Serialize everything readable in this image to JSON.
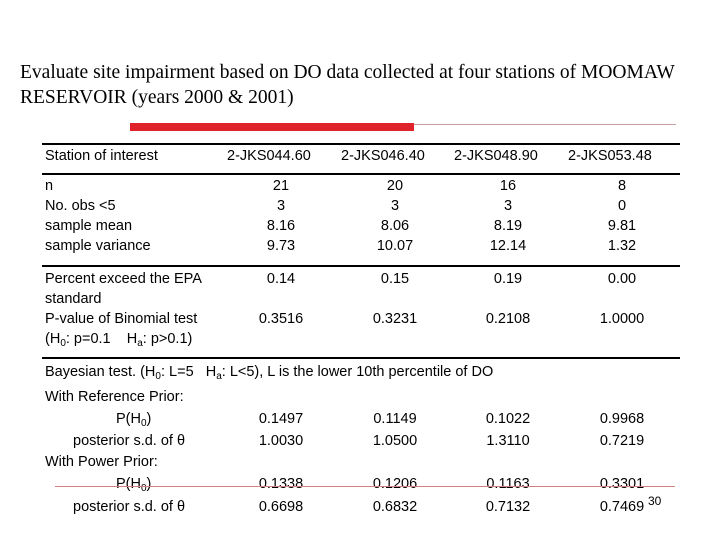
{
  "title": "Evaluate site impairment based on DO data collected at four stations of MOOMAW RESERVOIR (years 2000 & 2001)",
  "colors": {
    "accent_bar": "#e0222a"
  },
  "table": {
    "header_label": "Station of interest",
    "stations": [
      "2-JKS044.60",
      "2-JKS046.40",
      "2-JKS048.90",
      "2-JKS053.48"
    ],
    "block1": [
      {
        "label": "n",
        "values": [
          "21",
          "20",
          "16",
          "8"
        ]
      },
      {
        "label": "No. obs <5",
        "values": [
          "3",
          "3",
          "3",
          "0"
        ]
      },
      {
        "label": "sample mean",
        "values": [
          "8.16",
          "8.06",
          "8.19",
          "9.81"
        ]
      },
      {
        "label": "sample variance",
        "values": [
          "9.73",
          "10.07",
          "12.14",
          "1.32"
        ]
      }
    ],
    "block2": {
      "pct_label_1": "Percent exceed the EPA",
      "pct_label_2": "standard",
      "pct_values": [
        "0.14",
        "0.15",
        "0.19",
        "0.00"
      ],
      "pval_label": "P-value of Binomial test",
      "pval_values": [
        "0.3516",
        "0.3231",
        "0.2108",
        "1.0000"
      ],
      "hyp_pre": "(H",
      "hyp_sub0": "0",
      "hyp_mid": ": p=0.1    H",
      "hyp_suba": "a",
      "hyp_post": ": p>0.1)"
    },
    "block3": {
      "bayes_pre": "Bayesian test. (H",
      "bayes_sub0": "0",
      "bayes_mid": ": L=5   H",
      "bayes_suba": "a",
      "bayes_post": ": L<5), L is the lower 10th percentile of DO",
      "ref_label": "With Reference Prior:",
      "ref_ph0_pre": "P(H",
      "ref_ph0_sub": "0",
      "ref_ph0_post": ")",
      "ref_ph0_values": [
        "0.1497",
        "0.1149",
        "0.1022",
        "0.9968"
      ],
      "ref_sd_label": "posterior s.d. of θ",
      "ref_sd_values": [
        "1.0030",
        "1.0500",
        "1.3110",
        "0.7219"
      ],
      "pow_label": "With Power Prior:",
      "pow_ph0_pre": "P(H",
      "pow_ph0_sub": "0",
      "pow_ph0_post": ")",
      "pow_ph0_values": [
        "0.1338",
        "0.1206",
        "0.1163",
        "0.3301"
      ],
      "pow_sd_label": "posterior s.d. of θ",
      "pow_sd_values": [
        "0.6698",
        "0.6832",
        "0.7132",
        "0.7469"
      ]
    }
  },
  "page_number": "30"
}
